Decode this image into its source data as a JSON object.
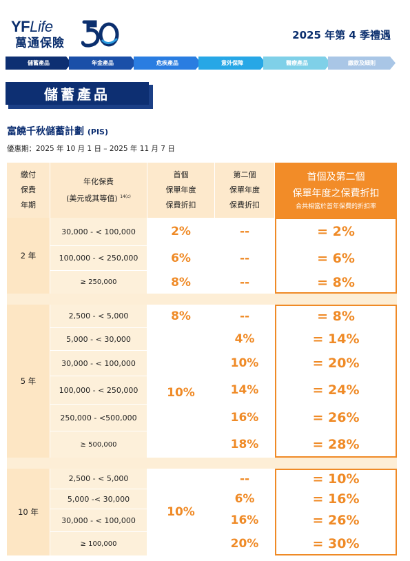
{
  "brand": {
    "name_en": "YF",
    "name_en_italic": "Life",
    "name_zh": "萬通保險",
    "anniversary": "50"
  },
  "promo_title": "2025 年第 4 季禮遇",
  "tabs": [
    {
      "label": "儲蓄產品",
      "color": "#0d2f72"
    },
    {
      "label": "年金產品",
      "color": "#1a4fa8"
    },
    {
      "label": "危疾產品",
      "color": "#2a7de1"
    },
    {
      "label": "意外保障",
      "color": "#27a7e6"
    },
    {
      "label": "醫療產品",
      "color": "#7fd0e8"
    },
    {
      "label": "繳款及細則",
      "color": "#a9c6e6"
    }
  ],
  "section_title": "儲蓄產品",
  "plan_name": "富饒千秋儲蓄計劃",
  "plan_code": "(PIS)",
  "offer_period": "優惠期：2025 年 10 月 1 日 – 2025 年 11 月 7 日",
  "table": {
    "headers": {
      "term": [
        "繳付",
        "保費",
        "年期"
      ],
      "premium": [
        "年化保費",
        "(美元或其等值)"
      ],
      "premium_note": "14(c)",
      "first": [
        "首個",
        "保單年度",
        "保費折扣"
      ],
      "second": [
        "第二個",
        "保單年度",
        "保費折扣"
      ],
      "total": [
        "首個及第二個",
        "保單年度之保費折扣"
      ],
      "total_note": "合共相當於首年保費的折扣率"
    },
    "groups": [
      {
        "term": "2 年",
        "rows": [
          {
            "premium": "30,000 - < 100,000",
            "first": "2%",
            "second": "--",
            "total": "= 2%"
          },
          {
            "premium": "100,000 - < 250,000",
            "first": "6%",
            "second": "--",
            "total": "= 6%"
          },
          {
            "premium": "≥ 250,000",
            "first": "8%",
            "second": "--",
            "total": "= 8%"
          }
        ]
      },
      {
        "term": "5 年",
        "first_merged": "10%",
        "rows": [
          {
            "premium": "2,500 - < 5,000",
            "first": "8%",
            "second": "--",
            "total": "= 8%"
          },
          {
            "premium": "5,000 - < 30,000",
            "second": "4%",
            "total": "= 14%"
          },
          {
            "premium": "30,000 - < 100,000",
            "second": "10%",
            "total": "= 20%"
          },
          {
            "premium": "100,000 - < 250,000",
            "second": "14%",
            "total": "= 24%"
          },
          {
            "premium": "250,000 - <500,000",
            "second": "16%",
            "total": "= 26%"
          },
          {
            "premium": "≥ 500,000",
            "second": "18%",
            "total": "= 28%"
          }
        ]
      },
      {
        "term": "10 年",
        "first_merged": "10%",
        "rows": [
          {
            "premium": "2,500 - < 5,000",
            "second": "--",
            "total": "= 10%"
          },
          {
            "premium": "5,000 -< 30,000",
            "second": "6%",
            "total": "= 16%"
          },
          {
            "premium": "30,000 - < 100,000",
            "second": "16%",
            "total": "= 26%"
          },
          {
            "premium": "≥ 100,000",
            "second": "20%",
            "total": "= 30%"
          }
        ]
      }
    ]
  }
}
